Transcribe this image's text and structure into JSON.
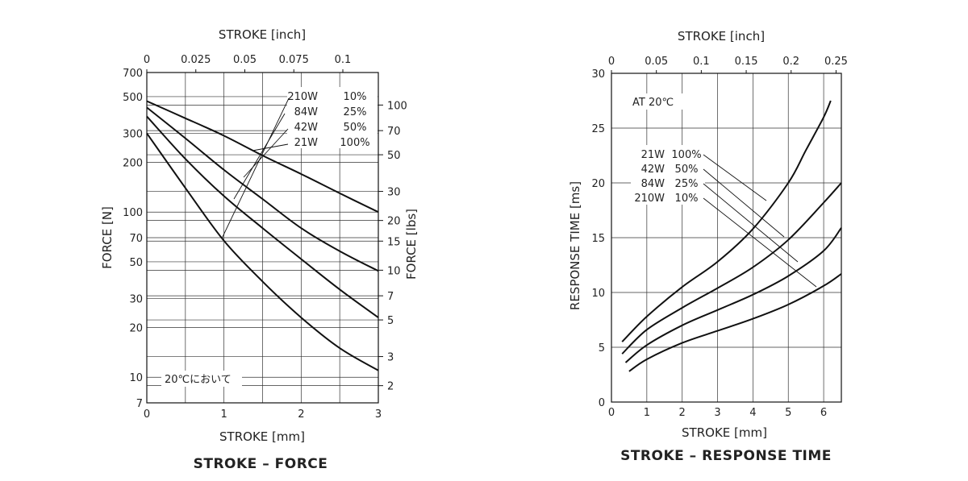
{
  "chart_data": [
    {
      "type": "line",
      "caption": "STROKE – FORCE",
      "x_top_label": "STROKE [inch]",
      "x_top_ticks": [
        "0",
        "0.025",
        "0.05",
        "0.075",
        "0.1"
      ],
      "x_top_values": [
        0,
        0.025,
        0.05,
        0.075,
        0.1
      ],
      "xlabel": "STROKE [mm]",
      "xlim": [
        0,
        3
      ],
      "x_ticks": [
        0,
        1,
        2,
        3
      ],
      "ylabel": "FORCE [N]",
      "ylim": [
        7,
        700
      ],
      "y_scale": "log",
      "y_ticks": [
        7,
        10,
        20,
        30,
        50,
        70,
        100,
        200,
        300,
        500,
        700
      ],
      "y2label": "FORCE [lbs]",
      "y2_ticks": [
        2,
        3,
        5,
        7,
        10,
        15,
        20,
        30,
        50,
        70,
        100
      ],
      "note": "20℃において",
      "legend": [
        {
          "watt": "210W",
          "duty": "10%"
        },
        {
          "watt": "84W",
          "duty": "25%"
        },
        {
          "watt": "42W",
          "duty": "50%"
        },
        {
          "watt": "21W",
          "duty": "100%"
        }
      ],
      "series": [
        {
          "x": [
            0,
            0.5,
            1,
            1.5,
            2,
            2.5,
            3
          ],
          "y": [
            470,
            370,
            290,
            220,
            170,
            130,
            100
          ]
        },
        {
          "x": [
            0,
            0.5,
            1,
            1.5,
            2,
            2.5,
            3
          ],
          "y": [
            430,
            280,
            180,
            120,
            80,
            58,
            44
          ]
        },
        {
          "x": [
            0,
            0.5,
            1,
            1.5,
            2,
            2.5,
            3
          ],
          "y": [
            380,
            210,
            125,
            80,
            52,
            34,
            23
          ]
        },
        {
          "x": [
            0,
            0.5,
            1,
            1.5,
            2,
            2.5,
            3
          ],
          "y": [
            300,
            140,
            67,
            38,
            23,
            15,
            11
          ]
        }
      ],
      "grid": true
    },
    {
      "type": "line",
      "caption": "STROKE – RESPONSE TIME",
      "x_top_label": "STROKE [inch]",
      "x_top_ticks": [
        "0",
        "0.05",
        "0.1",
        "0.15",
        "0.2",
        "0.25"
      ],
      "x_top_values": [
        0,
        0.05,
        0.1,
        0.15,
        0.2,
        0.25
      ],
      "xlabel": "STROKE [mm]",
      "xlim": [
        0,
        6.5
      ],
      "x_ticks": [
        0,
        1,
        2,
        3,
        4,
        5,
        6
      ],
      "ylabel": "RESPONSE TIME [ms]",
      "ylim": [
        0,
        30
      ],
      "y_ticks": [
        0,
        5,
        10,
        15,
        20,
        25,
        30
      ],
      "note": "AT 20℃",
      "legend": [
        {
          "watt": "21W",
          "duty": "100%"
        },
        {
          "watt": "42W",
          "duty": "50%"
        },
        {
          "watt": "84W",
          "duty": "25%"
        },
        {
          "watt": "210W",
          "duty": "10%"
        }
      ],
      "series": [
        {
          "x": [
            0.3,
            1,
            2,
            3,
            4,
            5,
            5.5,
            6,
            6.2
          ],
          "y": [
            5.5,
            7.8,
            10.5,
            12.8,
            15.8,
            20.0,
            23.0,
            26.0,
            27.5
          ]
        },
        {
          "x": [
            0.3,
            1,
            2,
            3,
            4,
            5,
            6,
            6.5
          ],
          "y": [
            4.4,
            6.6,
            8.6,
            10.4,
            12.3,
            14.8,
            18.2,
            20.0
          ]
        },
        {
          "x": [
            0.4,
            1,
            2,
            3,
            4,
            5,
            6,
            6.5
          ],
          "y": [
            3.6,
            5.2,
            7.0,
            8.4,
            9.8,
            11.5,
            13.8,
            15.9
          ]
        },
        {
          "x": [
            0.5,
            1,
            2,
            3,
            4,
            5,
            6,
            6.5
          ],
          "y": [
            2.8,
            3.9,
            5.4,
            6.5,
            7.6,
            8.9,
            10.6,
            11.7
          ]
        }
      ],
      "grid": true
    }
  ]
}
